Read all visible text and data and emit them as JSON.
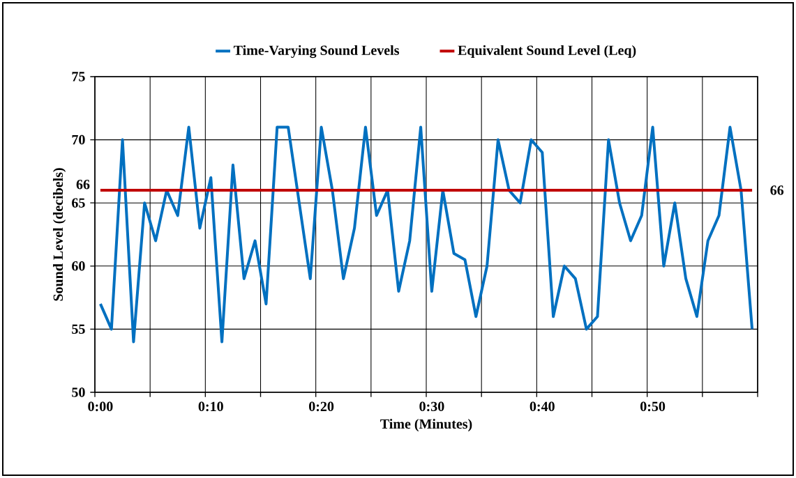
{
  "chart_data": {
    "type": "line",
    "xlabel": "Time (Minutes)",
    "ylabel": "Sound Level (decibels)",
    "categories": [
      "0:00",
      null,
      null,
      null,
      null,
      null,
      null,
      null,
      null,
      null,
      "0:10",
      null,
      null,
      null,
      null,
      null,
      null,
      null,
      null,
      null,
      "0:20",
      null,
      null,
      null,
      null,
      null,
      null,
      null,
      null,
      null,
      "0:30",
      null,
      null,
      null,
      null,
      null,
      null,
      null,
      null,
      null,
      "0:40",
      null,
      null,
      null,
      null,
      null,
      null,
      null,
      null,
      null,
      "0:50",
      null,
      null,
      null,
      null,
      null,
      null,
      null,
      null,
      null
    ],
    "ylim": [
      50,
      75
    ],
    "yticks": [
      50,
      55,
      60,
      65,
      70,
      75
    ],
    "grid": true,
    "legend": "top",
    "series": [
      {
        "name": "Time-Varying Sound Levels",
        "color": "#0070c0",
        "values": [
          57,
          55,
          70,
          54,
          65,
          62,
          66,
          64,
          71,
          63,
          67,
          54,
          68,
          59,
          62,
          57,
          71,
          71,
          65,
          59,
          71,
          66,
          59,
          63,
          71,
          64,
          66,
          58,
          62,
          71,
          58,
          66,
          61,
          60.5,
          56,
          60,
          70,
          66,
          65,
          70,
          69,
          56,
          60,
          59,
          55,
          56,
          70,
          65,
          62,
          64,
          71,
          60,
          65,
          59,
          56,
          62,
          64,
          71,
          66,
          55
        ]
      },
      {
        "name": "Equivalent Sound Level (Leq)",
        "color": "#c00000",
        "values": [
          66,
          66,
          66,
          66,
          66,
          66,
          66,
          66,
          66,
          66,
          66,
          66,
          66,
          66,
          66,
          66,
          66,
          66,
          66,
          66,
          66,
          66,
          66,
          66,
          66,
          66,
          66,
          66,
          66,
          66,
          66,
          66,
          66,
          66,
          66,
          66,
          66,
          66,
          66,
          66,
          66,
          66,
          66,
          66,
          66,
          66,
          66,
          66,
          66,
          66,
          66,
          66,
          66,
          66,
          66,
          66,
          66,
          66,
          66,
          66
        ],
        "value_labels": [
          "66",
          null,
          null,
          null,
          null,
          null,
          null,
          null,
          null,
          null,
          null,
          null,
          null,
          null,
          null,
          null,
          null,
          null,
          null,
          null,
          null,
          null,
          null,
          null,
          null,
          null,
          null,
          null,
          null,
          null,
          null,
          null,
          null,
          null,
          null,
          null,
          null,
          null,
          null,
          null,
          null,
          null,
          null,
          null,
          null,
          null,
          null,
          null,
          null,
          null,
          null,
          null,
          null,
          null,
          null,
          null,
          null,
          null,
          null,
          "66"
        ]
      }
    ]
  }
}
